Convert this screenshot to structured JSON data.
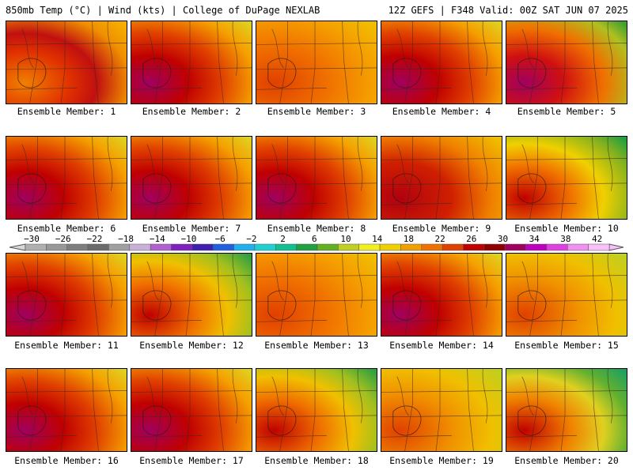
{
  "header": {
    "left": "850mb Temp (°C) | Wind (kts) | College of DuPage NEXLAB",
    "right": "12Z GEFS | F348 Valid: 00Z SAT JUN 07 2025"
  },
  "members": [
    {
      "label": "Ensemble Member: 1",
      "heat": "west-ridge"
    },
    {
      "label": "Ensemble Member: 2",
      "heat": "southwest-hot"
    },
    {
      "label": "Ensemble Member: 3",
      "heat": "warm"
    },
    {
      "label": "Ensemble Member: 4",
      "heat": "southwest-hot"
    },
    {
      "label": "Ensemble Member: 5",
      "heat": "west-hot-cool-ne"
    },
    {
      "label": "Ensemble Member: 6",
      "heat": "southwest-hot"
    },
    {
      "label": "Ensemble Member: 7",
      "heat": "southwest-hot"
    },
    {
      "label": "Ensemble Member: 8",
      "heat": "southwest-hot"
    },
    {
      "label": "Ensemble Member: 9",
      "heat": "west-hot"
    },
    {
      "label": "Ensemble Member: 10",
      "heat": "cool-east"
    },
    {
      "label": "Ensemble Member: 11",
      "heat": "southwest-hot"
    },
    {
      "label": "Ensemble Member: 12",
      "heat": "cool-north"
    },
    {
      "label": "Ensemble Member: 13",
      "heat": "warm"
    },
    {
      "label": "Ensemble Member: 14",
      "heat": "southwest-hot"
    },
    {
      "label": "Ensemble Member: 15",
      "heat": "mild"
    },
    {
      "label": "Ensemble Member: 16",
      "heat": "southwest-hot"
    },
    {
      "label": "Ensemble Member: 17",
      "heat": "southwest-hot"
    },
    {
      "label": "Ensemble Member: 18",
      "heat": "cool-north"
    },
    {
      "label": "Ensemble Member: 19",
      "heat": "mild"
    },
    {
      "label": "Ensemble Member: 20",
      "heat": "cool-low-ne"
    }
  ],
  "colorbar": {
    "labels": [
      "−30",
      "−26",
      "−22",
      "−18",
      "−14",
      "−10",
      "−6",
      "−2",
      "2",
      "6",
      "10",
      "14",
      "18",
      "22",
      "26",
      "30",
      "34",
      "38",
      "42"
    ],
    "colors": [
      "#b0b0b0",
      "#989898",
      "#7e7e7e",
      "#6c6c6c",
      "#a0a0a0",
      "#c8b0d8",
      "#b060d0",
      "#8020c0",
      "#4020b0",
      "#2060e0",
      "#20b0f0",
      "#20d0d0",
      "#10c090",
      "#20a040",
      "#60b020",
      "#c0d020",
      "#f0f020",
      "#f0d000",
      "#f0a000",
      "#f07000",
      "#e04000",
      "#c00000",
      "#900000",
      "#a00060",
      "#c000c0",
      "#e040e0",
      "#f090f0",
      "#f8c0f8"
    ]
  }
}
